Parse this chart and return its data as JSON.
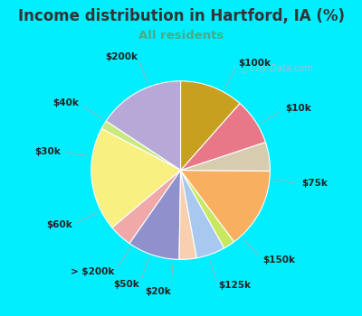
{
  "title": "Income distribution in Hartford, IA (%)",
  "subtitle": "All residents",
  "title_color": "#333333",
  "subtitle_color": "#4aaa88",
  "background_outer": "#00eeff",
  "background_inner_color": "#e8f5ee",
  "watermark": "City-Data.com",
  "labels": [
    "$100k",
    "$10k",
    "$75k",
    "$150k",
    "$125k",
    "$20k",
    "$50k",
    "> $200k",
    "$60k",
    "$30k",
    "$40k",
    "$200k"
  ],
  "sizes": [
    15,
    1.5,
    18,
    4,
    9,
    3,
    5,
    2,
    14,
    5,
    8,
    11
  ],
  "colors": [
    "#b8a8d8",
    "#c8e880",
    "#f8f080",
    "#f0a8a8",
    "#9090cc",
    "#f8d0b0",
    "#a8c8f0",
    "#c8e860",
    "#f8b060",
    "#d8ccb0",
    "#e87888",
    "#c8a020"
  ],
  "label_fontsize": 7.5,
  "title_fontsize": 12,
  "subtitle_fontsize": 9.5,
  "startangle": 90,
  "pct_distance": 1.28
}
